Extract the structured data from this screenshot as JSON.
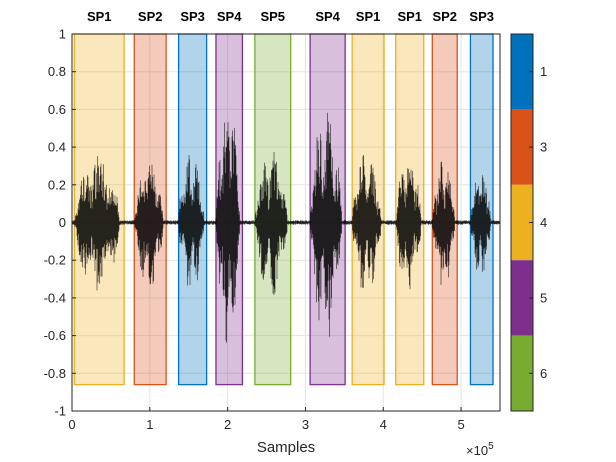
{
  "chart_data": {
    "type": "segmented-waveform",
    "xlabel": "Samples",
    "x_exponent": "×10",
    "x_exponent_power": "5",
    "xlim": [
      0,
      550000
    ],
    "ylim": [
      -1,
      1
    ],
    "xticks": [
      0,
      1,
      2,
      3,
      4,
      5
    ],
    "xtick_labels": [
      "0",
      "1",
      "2",
      "3",
      "4",
      "5"
    ],
    "yticks": [
      1,
      0.8,
      0.6,
      0.4,
      0.2,
      0,
      -0.2,
      -0.4,
      -0.6,
      -0.8,
      -1
    ],
    "ytick_labels": [
      "1",
      "0.8",
      "0.6",
      "0.4",
      "0.2",
      "0",
      "-0.2",
      "-0.4",
      "-0.6",
      "-0.8",
      "-1"
    ],
    "grid": true,
    "segment_bottom": -0.86,
    "segment_top": 1.0,
    "segments": [
      {
        "label": "SP1",
        "speaker": 4,
        "start": 3000,
        "end": 67000,
        "peak": 0.4
      },
      {
        "label": "SP2",
        "speaker": 3,
        "start": 80000,
        "end": 121000,
        "peak": 0.36
      },
      {
        "label": "SP3",
        "speaker": 1,
        "start": 137000,
        "end": 173000,
        "peak": 0.38
      },
      {
        "label": "SP4",
        "speaker": 5,
        "start": 185000,
        "end": 219000,
        "peak": 0.66
      },
      {
        "label": "SP5",
        "speaker": 6,
        "start": 235000,
        "end": 281000,
        "peak": 0.4
      },
      {
        "label": "SP4",
        "speaker": 5,
        "start": 306000,
        "end": 351000,
        "peak": 0.63
      },
      {
        "label": "SP1",
        "speaker": 4,
        "start": 360000,
        "end": 401000,
        "peak": 0.4
      },
      {
        "label": "SP1",
        "speaker": 4,
        "start": 416000,
        "end": 452000,
        "peak": 0.38
      },
      {
        "label": "SP2",
        "speaker": 3,
        "start": 463000,
        "end": 495000,
        "peak": 0.36
      },
      {
        "label": "SP3",
        "speaker": 1,
        "start": 512000,
        "end": 541000,
        "peak": 0.3
      }
    ],
    "colorbar": {
      "labels": [
        "1",
        "3",
        "4",
        "5",
        "6"
      ],
      "colors": [
        "#0072BD",
        "#D95319",
        "#EDB120",
        "#7E2F8E",
        "#77AC30"
      ]
    }
  }
}
